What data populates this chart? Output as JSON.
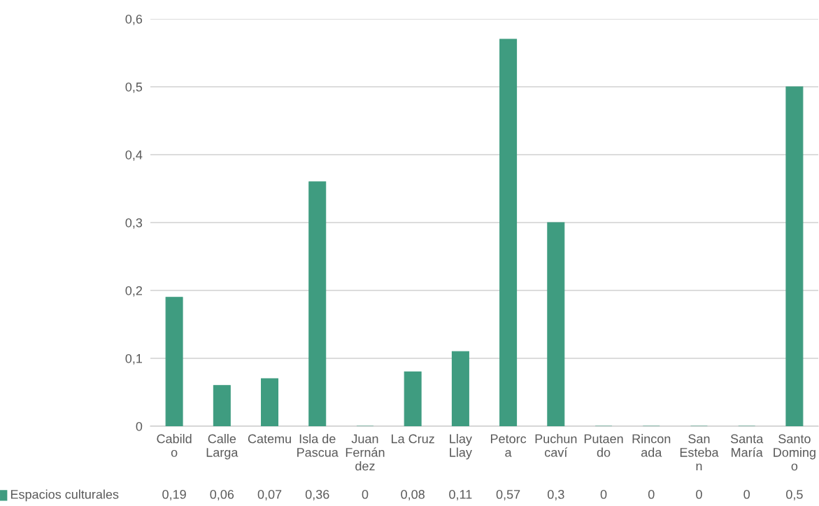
{
  "chart_data": {
    "type": "bar",
    "categories": [
      "Cabildo",
      "Calle Larga",
      "Catemu",
      "Isla de Pascua",
      "Juan Fernández",
      "La Cruz",
      "Llay Llay",
      "Petorca",
      "Puchuncaví",
      "Putaendo",
      "Rinconada",
      "San Esteban",
      "Santa María",
      "Santo Domingo"
    ],
    "series": [
      {
        "name": "Espacios culturales",
        "color": "#3f9c80",
        "values": [
          0.19,
          0.06,
          0.07,
          0.36,
          0,
          0.08,
          0.11,
          0.57,
          0.3,
          0,
          0,
          0,
          0,
          0.5
        ],
        "value_labels": [
          "0,19",
          "0,06",
          "0,07",
          "0,36",
          "0",
          "0,08",
          "0,11",
          "0,57",
          "0,3",
          "0",
          "0",
          "0",
          "0",
          "0,5"
        ]
      }
    ],
    "ylim": [
      0,
      0.6
    ],
    "yticks": [
      0,
      {
        "value": 0.1,
        "label": "0,1"
      },
      {
        "value": 0.2,
        "label": "0,2"
      },
      {
        "value": 0.3,
        "label": "0,3"
      },
      {
        "value": 0.4,
        "label": "0,4"
      },
      {
        "value": 0.5,
        "label": "0,5"
      },
      {
        "value": 0.6,
        "label": "0,6"
      }
    ],
    "grid": "y",
    "legend": "bottom"
  }
}
